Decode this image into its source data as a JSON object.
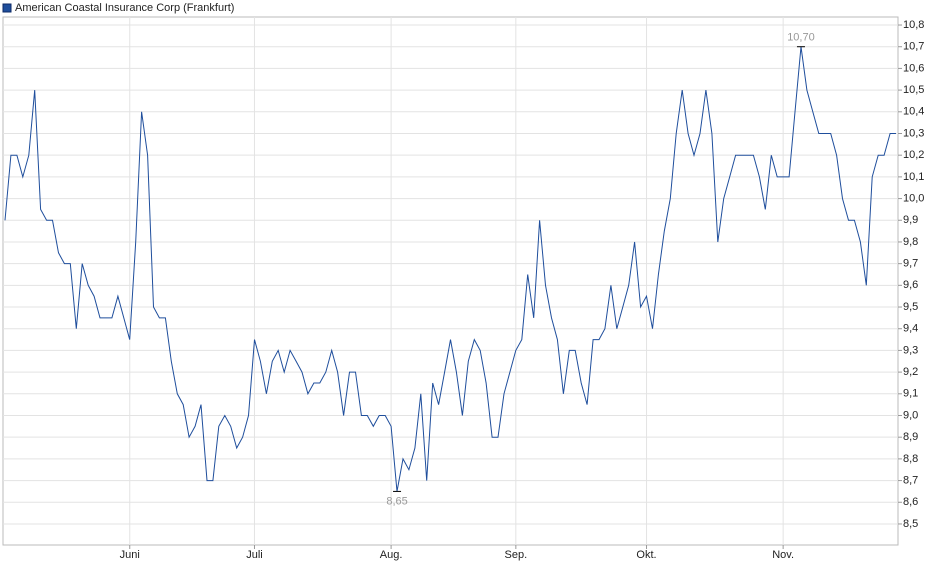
{
  "chart_data": {
    "type": "line",
    "ylim": [
      8.403,
      10.837
    ],
    "yticks": [
      {
        "value": 8.5,
        "label": "8,5"
      },
      {
        "value": 8.6,
        "label": "8,6"
      },
      {
        "value": 8.7,
        "label": "8,7"
      },
      {
        "value": 8.8,
        "label": "8,8"
      },
      {
        "value": 8.9,
        "label": "8,9"
      },
      {
        "value": 9.0,
        "label": "9,0"
      },
      {
        "value": 9.1,
        "label": "9,1"
      },
      {
        "value": 9.2,
        "label": "9,2"
      },
      {
        "value": 9.3,
        "label": "9,3"
      },
      {
        "value": 9.4,
        "label": "9,4"
      },
      {
        "value": 9.5,
        "label": "9,5"
      },
      {
        "value": 9.6,
        "label": "9,6"
      },
      {
        "value": 9.7,
        "label": "9,7"
      },
      {
        "value": 9.8,
        "label": "9,8"
      },
      {
        "value": 9.9,
        "label": "9,9"
      },
      {
        "value": 10.0,
        "label": "10,0"
      },
      {
        "value": 10.1,
        "label": "10,1"
      },
      {
        "value": 10.2,
        "label": "10,2"
      },
      {
        "value": 10.3,
        "label": "10,3"
      },
      {
        "value": 10.4,
        "label": "10,4"
      },
      {
        "value": 10.5,
        "label": "10,5"
      },
      {
        "value": 10.6,
        "label": "10,6"
      },
      {
        "value": 10.7,
        "label": "10,7"
      },
      {
        "value": 10.8,
        "label": "10,8"
      }
    ],
    "grid": true,
    "categories": [
      null,
      null,
      null,
      null,
      null,
      null,
      null,
      null,
      null,
      null,
      null,
      null,
      null,
      null,
      null,
      null,
      null,
      null,
      null,
      null,
      null,
      "Juni",
      null,
      null,
      null,
      null,
      null,
      null,
      null,
      null,
      null,
      null,
      null,
      null,
      null,
      null,
      null,
      null,
      null,
      null,
      null,
      null,
      "Juli",
      null,
      null,
      null,
      null,
      null,
      null,
      null,
      null,
      null,
      null,
      null,
      null,
      null,
      null,
      null,
      null,
      null,
      null,
      null,
      null,
      null,
      null,
      "Aug.",
      null,
      null,
      null,
      null,
      null,
      null,
      null,
      null,
      null,
      null,
      null,
      null,
      null,
      null,
      null,
      null,
      null,
      null,
      null,
      null,
      "Sep.",
      null,
      null,
      null,
      null,
      null,
      null,
      null,
      null,
      null,
      null,
      null,
      null,
      null,
      null,
      null,
      null,
      null,
      null,
      null,
      null,
      null,
      "Okt.",
      null,
      null,
      null,
      null,
      null,
      null,
      null,
      null,
      null,
      null,
      null,
      null,
      null,
      null,
      null,
      null,
      null,
      null,
      null,
      null,
      null,
      null,
      "Nov.",
      null,
      null,
      null,
      null,
      null,
      null,
      null,
      null,
      null,
      null,
      null,
      null,
      null,
      null,
      null,
      null,
      null,
      null,
      null
    ],
    "series": [
      {
        "name": "American Coastal Insurance Corp (Frankfurt)",
        "color": "#1f4e9c",
        "values": [
          9.9,
          10.2,
          10.2,
          10.1,
          10.2,
          10.5,
          9.95,
          9.9,
          9.9,
          9.75,
          9.7,
          9.7,
          9.4,
          9.7,
          9.6,
          9.55,
          9.45,
          9.45,
          9.45,
          9.55,
          9.45,
          9.35,
          9.8,
          10.4,
          10.2,
          9.5,
          9.45,
          9.45,
          9.25,
          9.1,
          9.05,
          8.9,
          8.95,
          9.05,
          8.7,
          8.7,
          8.95,
          9.0,
          8.95,
          8.85,
          8.9,
          9.0,
          9.35,
          9.25,
          9.1,
          9.25,
          9.3,
          9.2,
          9.3,
          9.25,
          9.2,
          9.1,
          9.15,
          9.15,
          9.2,
          9.3,
          9.2,
          9.0,
          9.2,
          9.2,
          9.0,
          9.0,
          8.95,
          9.0,
          9.0,
          8.95,
          8.65,
          8.8,
          8.75,
          8.85,
          9.1,
          8.7,
          9.15,
          9.05,
          9.2,
          9.35,
          9.2,
          9.0,
          9.25,
          9.35,
          9.3,
          9.15,
          8.9,
          8.9,
          9.1,
          9.2,
          9.3,
          9.35,
          9.65,
          9.45,
          9.9,
          9.6,
          9.45,
          9.35,
          9.1,
          9.3,
          9.3,
          9.15,
          9.05,
          9.35,
          9.35,
          9.4,
          9.6,
          9.4,
          9.5,
          9.6,
          9.8,
          9.5,
          9.55,
          9.4,
          9.65,
          9.85,
          10.0,
          10.3,
          10.5,
          10.3,
          10.2,
          10.3,
          10.5,
          10.3,
          9.8,
          10.0,
          10.1,
          10.2,
          10.2,
          10.2,
          10.2,
          10.1,
          9.95,
          10.2,
          10.1,
          10.1,
          10.1,
          10.4,
          10.7,
          10.5,
          10.4,
          10.3,
          10.3,
          10.3,
          10.2,
          10.0,
          9.9,
          9.9,
          9.8,
          9.6,
          10.1,
          10.2,
          10.2,
          10.3,
          10.3
        ],
        "value_labels": [
          null,
          null,
          null,
          null,
          null,
          null,
          null,
          null,
          null,
          null,
          null,
          null,
          null,
          null,
          null,
          null,
          null,
          null,
          null,
          null,
          null,
          null,
          null,
          null,
          null,
          null,
          null,
          null,
          null,
          null,
          null,
          null,
          null,
          null,
          null,
          null,
          null,
          null,
          null,
          null,
          null,
          null,
          null,
          null,
          null,
          null,
          null,
          null,
          null,
          null,
          null,
          null,
          null,
          null,
          null,
          null,
          null,
          null,
          null,
          null,
          null,
          null,
          null,
          null,
          null,
          null,
          "8,65",
          null,
          null,
          null,
          null,
          null,
          null,
          null,
          null,
          null,
          null,
          null,
          null,
          null,
          null,
          null,
          null,
          null,
          null,
          null,
          null,
          null,
          null,
          null,
          null,
          null,
          null,
          null,
          null,
          null,
          null,
          null,
          null,
          null,
          null,
          null,
          null,
          null,
          null,
          null,
          null,
          null,
          null,
          null,
          null,
          null,
          null,
          null,
          null,
          null,
          null,
          null,
          null,
          null,
          null,
          null,
          null,
          null,
          null,
          null,
          null,
          null,
          null,
          null,
          null,
          null,
          null,
          null,
          "10,70",
          null,
          null,
          null,
          null,
          null,
          null,
          null,
          null,
          null,
          null,
          null,
          null,
          null,
          null,
          null,
          null
        ]
      }
    ]
  }
}
